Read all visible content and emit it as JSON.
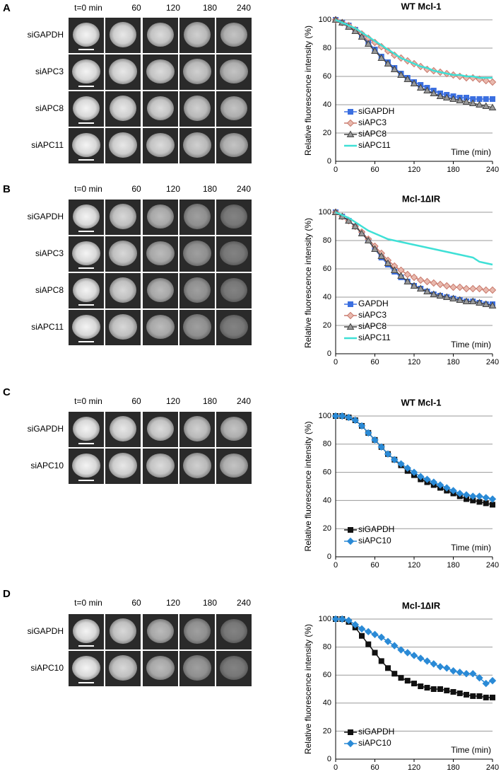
{
  "image_panels": [
    {
      "letter": "A",
      "column_labels": [
        "t=0 min",
        "60",
        "120",
        "180",
        "240"
      ],
      "row_labels": [
        "siGAPDH",
        "siAPC3",
        "siAPC8",
        "siAPC11"
      ]
    },
    {
      "letter": "B",
      "column_labels": [
        "t=0 min",
        "60",
        "120",
        "180",
        "240"
      ],
      "row_labels": [
        "siGAPDH",
        "siAPC3",
        "siAPC8",
        "siAPC11"
      ]
    },
    {
      "letter": "C",
      "column_labels": [
        "t=0 min",
        "60",
        "120",
        "180",
        "240"
      ],
      "row_labels": [
        "siGAPDH",
        "siAPC10"
      ]
    },
    {
      "letter": "D",
      "column_labels": [
        "t=0 min",
        "60",
        "120",
        "180",
        "240"
      ],
      "row_labels": [
        "siGAPDH",
        "siAPC10"
      ]
    }
  ],
  "chart_data": [
    {
      "type": "line",
      "title": "WT Mcl-1",
      "y_label": "Relative fluorescence intensity (%)",
      "x_annotation": "Time (min)",
      "x": [
        0,
        10,
        20,
        30,
        40,
        50,
        60,
        70,
        80,
        90,
        100,
        110,
        120,
        130,
        140,
        150,
        160,
        170,
        180,
        190,
        200,
        210,
        220,
        230,
        240
      ],
      "xlim": [
        0,
        240
      ],
      "xticks": [
        0,
        60,
        120,
        180,
        240
      ],
      "ylim": [
        0,
        100
      ],
      "yticks": [
        0,
        20,
        40,
        60,
        80,
        100
      ],
      "grid": true,
      "legend": "lower left",
      "series": [
        {
          "name": "siGAPDH",
          "color": "#3b6fe0",
          "marker": "square",
          "values": [
            100,
            98,
            96,
            93,
            89,
            84,
            79,
            74,
            70,
            66,
            62,
            59,
            56,
            54,
            52,
            50,
            48,
            47,
            46,
            45,
            45,
            44,
            44,
            44,
            44
          ]
        },
        {
          "name": "siAPC3",
          "color": "#c9796c",
          "marker": "diamond",
          "values": [
            100,
            98,
            96,
            93,
            90,
            87,
            84,
            81,
            78,
            75,
            73,
            71,
            69,
            67,
            65,
            64,
            63,
            62,
            61,
            60,
            59,
            59,
            58,
            57,
            56
          ]
        },
        {
          "name": "siAPC8",
          "color": "#444444",
          "marker": "triangle",
          "values": [
            100,
            98,
            95,
            92,
            88,
            83,
            78,
            73,
            69,
            65,
            61,
            58,
            55,
            52,
            50,
            48,
            46,
            45,
            44,
            43,
            42,
            41,
            40,
            39,
            38
          ]
        },
        {
          "name": "siAPC11",
          "color": "#3fe0d6",
          "marker": "none",
          "values": [
            100,
            98,
            96,
            94,
            91,
            88,
            85,
            82,
            79,
            76,
            73,
            71,
            69,
            67,
            66,
            64,
            63,
            62,
            61,
            61,
            60,
            60,
            59,
            59,
            59
          ]
        }
      ]
    },
    {
      "type": "line",
      "title": "Mcl-1∆IR",
      "y_label": "Relative fluorescence intensity (%)",
      "x_annotation": "Time (min)",
      "x": [
        0,
        10,
        20,
        30,
        40,
        50,
        60,
        70,
        80,
        90,
        100,
        110,
        120,
        130,
        140,
        150,
        160,
        170,
        180,
        190,
        200,
        210,
        220,
        230,
        240
      ],
      "xlim": [
        0,
        240
      ],
      "xticks": [
        0,
        60,
        120,
        180,
        240
      ],
      "ylim": [
        0,
        100
      ],
      "yticks": [
        0,
        20,
        40,
        60,
        80,
        100
      ],
      "grid": true,
      "legend": "lower left",
      "series": [
        {
          "name": "GAPDH",
          "color": "#3b6fe0",
          "marker": "square",
          "values": [
            100,
            97,
            94,
            90,
            85,
            80,
            74,
            68,
            63,
            58,
            54,
            51,
            48,
            46,
            44,
            42,
            41,
            40,
            39,
            38,
            37,
            37,
            36,
            35,
            35
          ]
        },
        {
          "name": "siAPC3",
          "color": "#c9796c",
          "marker": "diamond",
          "values": [
            100,
            97,
            94,
            90,
            86,
            81,
            76,
            71,
            66,
            62,
            59,
            56,
            54,
            52,
            51,
            50,
            49,
            48,
            47,
            47,
            46,
            46,
            46,
            45,
            45
          ]
        },
        {
          "name": "siAPC8",
          "color": "#444444",
          "marker": "triangle",
          "values": [
            100,
            97,
            94,
            90,
            85,
            80,
            74,
            69,
            64,
            59,
            55,
            51,
            48,
            46,
            44,
            42,
            41,
            40,
            39,
            38,
            37,
            37,
            36,
            35,
            34
          ]
        },
        {
          "name": "siAPC11",
          "color": "#3fe0d6",
          "marker": "none",
          "values": [
            100,
            98,
            96,
            93,
            90,
            87,
            85,
            83,
            81,
            80,
            79,
            78,
            77,
            76,
            75,
            74,
            73,
            72,
            71,
            70,
            69,
            68,
            65,
            64,
            63
          ]
        }
      ]
    },
    {
      "type": "line",
      "title": "WT Mcl-1",
      "y_label": "Relative fluorescence intensity (%)",
      "x_annotation": "Time (min)",
      "x": [
        0,
        10,
        20,
        30,
        40,
        50,
        60,
        70,
        80,
        90,
        100,
        110,
        120,
        130,
        140,
        150,
        160,
        170,
        180,
        190,
        200,
        210,
        220,
        230,
        240
      ],
      "xlim": [
        0,
        240
      ],
      "xticks": [
        0,
        60,
        120,
        180,
        240
      ],
      "ylim": [
        0,
        100
      ],
      "yticks": [
        0,
        20,
        40,
        60,
        80,
        100
      ],
      "grid": true,
      "legend": "lower left",
      "series": [
        {
          "name": "siGAPDH",
          "color": "#111111",
          "marker": "square",
          "values": [
            100,
            100,
            99,
            97,
            93,
            88,
            83,
            78,
            73,
            69,
            65,
            61,
            58,
            55,
            53,
            51,
            49,
            47,
            45,
            43,
            41,
            40,
            39,
            38,
            37
          ]
        },
        {
          "name": "siAPC10",
          "color": "#2a8ad6",
          "marker": "diamond",
          "values": [
            100,
            100,
            99,
            97,
            93,
            88,
            83,
            78,
            73,
            69,
            66,
            63,
            60,
            57,
            55,
            53,
            51,
            49,
            47,
            45,
            44,
            43,
            43,
            42,
            41
          ]
        }
      ]
    },
    {
      "type": "line",
      "title": "Mcl-1∆IR",
      "y_label": "Relative fluorescence intensity (%)",
      "x_annotation": "Time (min)",
      "x": [
        0,
        10,
        20,
        30,
        40,
        50,
        60,
        70,
        80,
        90,
        100,
        110,
        120,
        130,
        140,
        150,
        160,
        170,
        180,
        190,
        200,
        210,
        220,
        230,
        240
      ],
      "xlim": [
        0,
        240
      ],
      "xticks": [
        0,
        60,
        120,
        180,
        240
      ],
      "ylim": [
        0,
        100
      ],
      "yticks": [
        0,
        20,
        40,
        60,
        80,
        100
      ],
      "grid": true,
      "legend": "lower left",
      "series": [
        {
          "name": "siGAPDH",
          "color": "#111111",
          "marker": "square",
          "values": [
            100,
            100,
            98,
            94,
            88,
            82,
            76,
            70,
            65,
            61,
            58,
            56,
            54,
            52,
            51,
            50,
            50,
            49,
            48,
            47,
            46,
            45,
            45,
            44,
            44
          ]
        },
        {
          "name": "siAPC10",
          "color": "#2a8ad6",
          "marker": "diamond",
          "values": [
            100,
            100,
            99,
            96,
            93,
            91,
            89,
            87,
            84,
            81,
            78,
            76,
            74,
            72,
            70,
            68,
            66,
            65,
            63,
            62,
            61,
            61,
            58,
            54,
            56
          ]
        }
      ]
    }
  ]
}
